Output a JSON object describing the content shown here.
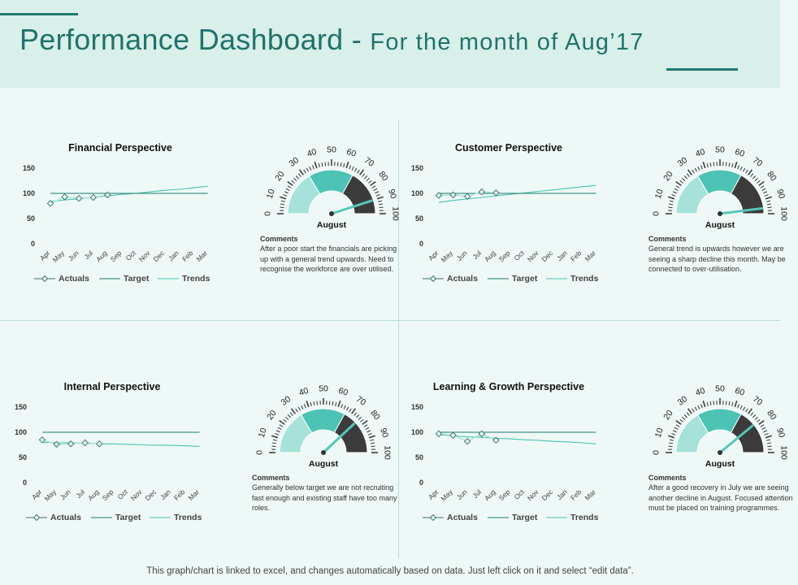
{
  "header": {
    "title_main": "Performance Dashboard - ",
    "title_sub": "For the month of Aug’17"
  },
  "footer": {
    "note": "This graph/chart is linked to excel, and changes automatically based on data. Just left click on it and select “edit data”."
  },
  "colors": {
    "teal_dark": "#1f7a70",
    "teal_mid": "#4cc3b5",
    "teal_light": "#a6e2da",
    "gauge_dark": "#3b3b3b",
    "needle": "#56c7bb",
    "marker_stroke": "#3d6d68"
  },
  "gauge_common": {
    "ticks": [
      "0",
      "10",
      "20",
      "30",
      "40",
      "50",
      "60",
      "70",
      "80",
      "90",
      "100"
    ],
    "label": "August",
    "bands": [
      {
        "from": 0,
        "to": 33,
        "color": "#a6e2da"
      },
      {
        "from": 33,
        "to": 66,
        "color": "#4cc3b5"
      },
      {
        "from": 66,
        "to": 100,
        "color": "#3b3b3b"
      }
    ]
  },
  "legend": {
    "actuals": "Actuals",
    "target": "Target",
    "trends": "Trends"
  },
  "comments_header": "Comments",
  "panels": [
    {
      "key": "financial",
      "title": "Financial Perspective",
      "comment": "After a poor start the financials are picking up with a general trend upwards. Need to recognise the workforce are over utilised.",
      "gauge_value": 90,
      "chart_data": {
        "type": "line",
        "title": "Financial Perspective",
        "categories": [
          "Apr",
          "May",
          "Jun",
          "Jul",
          "Aug",
          "Sep",
          "Oct",
          "Nov",
          "Dec",
          "Jan",
          "Feb",
          "Mar"
        ],
        "y_ticks": [
          "150",
          "100",
          "50",
          "0"
        ],
        "ylim": [
          0,
          150
        ],
        "series": [
          {
            "name": "Actuals",
            "values": [
              80,
              93,
              90,
              92,
              97,
              null,
              null,
              null,
              null,
              null,
              null,
              null
            ]
          },
          {
            "name": "Target",
            "values": [
              100,
              100,
              100,
              100,
              100,
              100,
              100,
              100,
              100,
              100,
              100,
              100
            ]
          },
          {
            "name": "Trends",
            "values": [
              84,
              87,
              89,
              92,
              95,
              98,
              100,
              103,
              106,
              108,
              111,
              114
            ]
          }
        ]
      }
    },
    {
      "key": "customer",
      "title": "Customer Perspective",
      "comment": "General trend is upwards however we are seeing a sharp decline this month. May be connected to over-utilisation.",
      "gauge_value": 96,
      "chart_data": {
        "type": "line",
        "title": "Customer Perspective",
        "categories": [
          "Apr",
          "May",
          "Jun",
          "Jul",
          "Aug",
          "Sep",
          "Oct",
          "Nov",
          "Dec",
          "Jan",
          "Feb",
          "Mar"
        ],
        "y_ticks": [
          "150",
          "100",
          "50",
          "0"
        ],
        "ylim": [
          0,
          150
        ],
        "series": [
          {
            "name": "Actuals",
            "values": [
              96,
              97,
              94,
              103,
              101,
              null,
              null,
              null,
              null,
              null,
              null,
              null
            ]
          },
          {
            "name": "Target",
            "values": [
              100,
              100,
              100,
              100,
              100,
              100,
              100,
              100,
              100,
              100,
              100,
              100
            ]
          },
          {
            "name": "Trends",
            "values": [
              82,
              86,
              89,
              92,
              95,
              98,
              101,
              104,
              107,
              110,
              113,
              116
            ]
          }
        ]
      }
    },
    {
      "key": "internal",
      "title": "Internal Perspective",
      "comment": "Generally below target we are not recruiting fast enough and existing staff have too many roles.",
      "gauge_value": 76,
      "chart_data": {
        "type": "line",
        "title": "Internal Perspective",
        "categories": [
          "Apr",
          "May",
          "Jun",
          "Jul",
          "Aug",
          "Sep",
          "Oct",
          "Nov",
          "Dec",
          "Jan",
          "Feb",
          "Mar"
        ],
        "y_ticks": [
          "150",
          "100",
          "50",
          "0"
        ],
        "ylim": [
          0,
          150
        ],
        "series": [
          {
            "name": "Actuals",
            "values": [
              85,
              76,
              77,
              79,
              77,
              null,
              null,
              null,
              null,
              null,
              null,
              null
            ]
          },
          {
            "name": "Target",
            "values": [
              100,
              100,
              100,
              100,
              100,
              100,
              100,
              100,
              100,
              100,
              100,
              100
            ]
          },
          {
            "name": "Trends",
            "values": [
              80,
              79,
              79,
              78,
              77,
              77,
              76,
              75,
              74,
              74,
              73,
              72
            ]
          }
        ]
      }
    },
    {
      "key": "learning",
      "title": "Learning & Growth Perspective",
      "comment": "After a good recovery in July we are seeing another decline in August. Focused attention must be placed on training programmes.",
      "gauge_value": 78,
      "chart_data": {
        "type": "line",
        "title": "Learning & Growth Perspective",
        "categories": [
          "Apr",
          "May",
          "Jun",
          "Jul",
          "Aug",
          "Sep",
          "Oct",
          "Nov",
          "Dec",
          "Jan",
          "Feb",
          "Mar"
        ],
        "y_ticks": [
          "150",
          "100",
          "50",
          "0"
        ],
        "ylim": [
          0,
          150
        ],
        "series": [
          {
            "name": "Actuals",
            "values": [
              97,
              94,
              82,
              97,
              84,
              null,
              null,
              null,
              null,
              null,
              null,
              null
            ]
          },
          {
            "name": "Target",
            "values": [
              100,
              100,
              100,
              100,
              100,
              100,
              100,
              100,
              100,
              100,
              100,
              100
            ]
          },
          {
            "name": "Trends",
            "values": [
              95,
              93,
              91,
              90,
              88,
              87,
              85,
              84,
              82,
              81,
              79,
              77
            ]
          }
        ]
      }
    }
  ]
}
